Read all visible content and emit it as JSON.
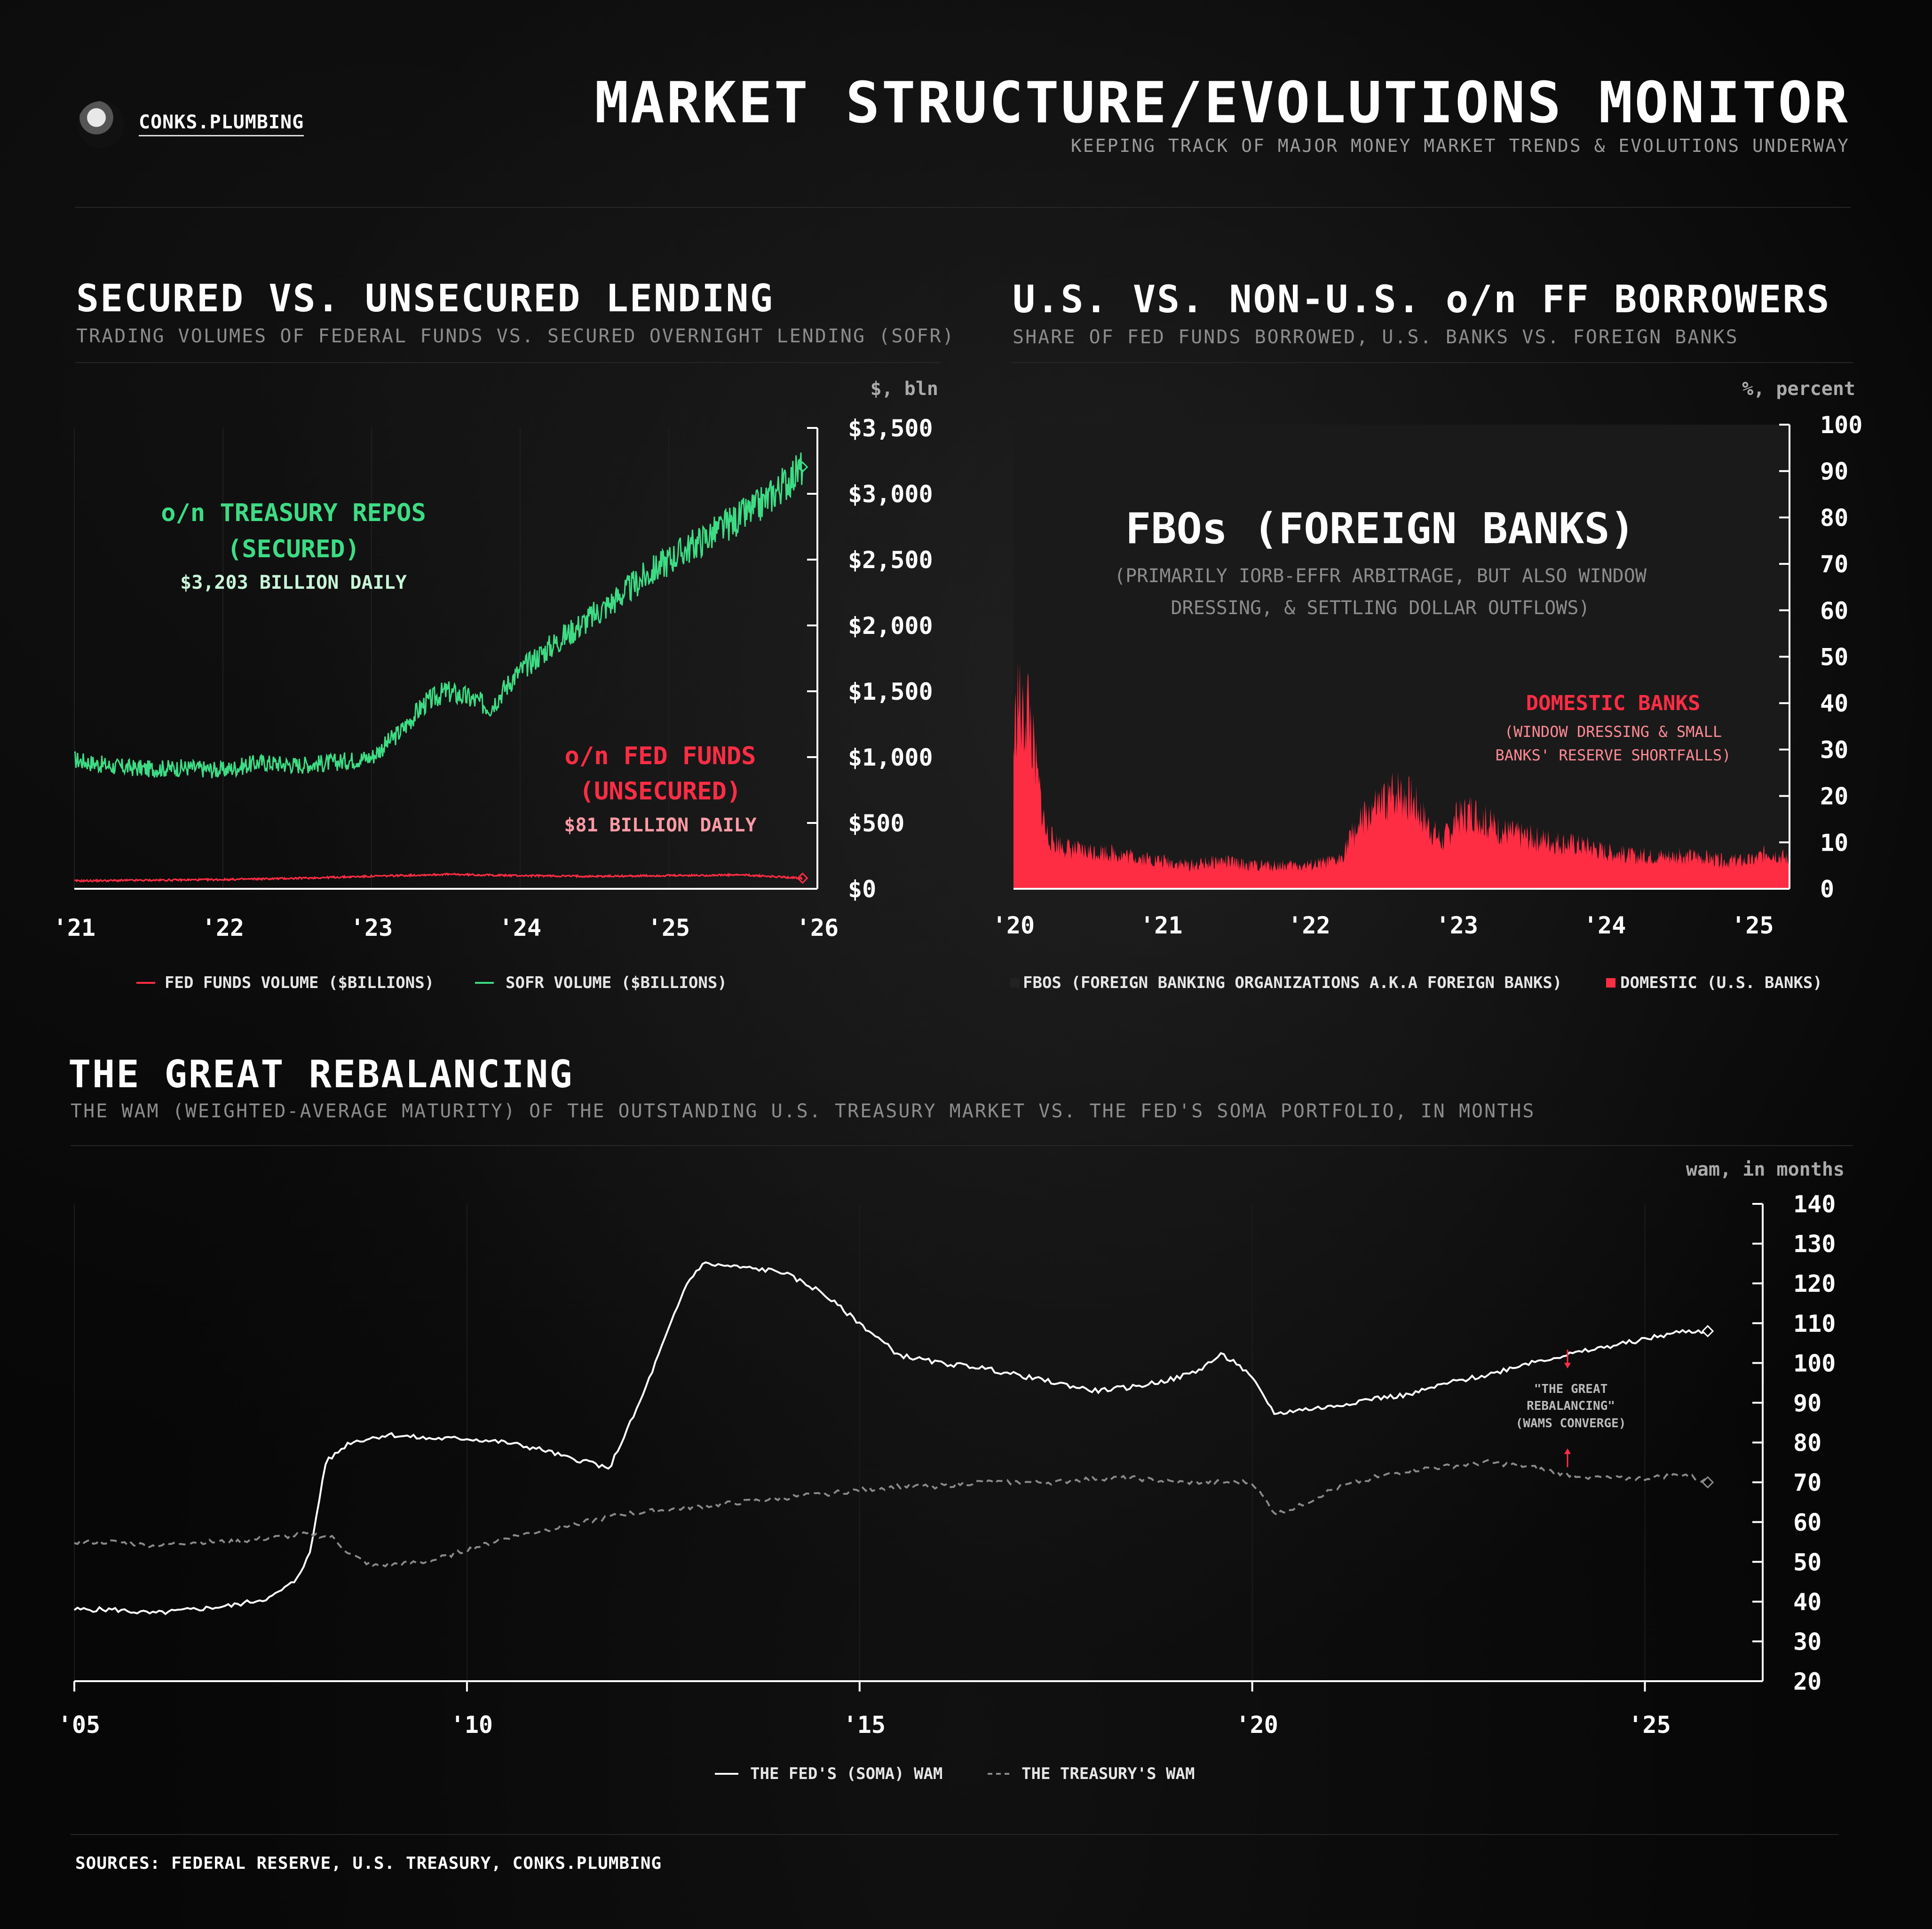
{
  "header": {
    "brand": "CONKS.PLUMBING",
    "title": "MARKET STRUCTURE/EVOLUTIONS MONITOR",
    "subtitle": "KEEPING TRACK OF MAJOR MONEY MARKET TRENDS & EVOLUTIONS UNDERWAY"
  },
  "colors": {
    "sofr": "#3ddc84",
    "fedfunds": "#ff2d44",
    "domestic": "#ff2d44",
    "fbo_bg": "#1a1a1a",
    "soma": "#ffffff",
    "treasury": "#8a8a8a"
  },
  "panel1": {
    "title": "SECURED VS. UNSECURED LENDING",
    "subtitle": "TRADING VOLUMES OF FEDERAL FUNDS VS. SECURED OVERNIGHT LENDING (SOFR)",
    "unit": "$, bln",
    "anno_sofr_1": "o/n TREASURY REPOS",
    "anno_sofr_2": "(SECURED)",
    "anno_sofr_3": "$3,203 BILLION DAILY",
    "anno_ff_1": "o/n FED FUNDS",
    "anno_ff_2": "(UNSECURED)",
    "anno_ff_3": "$81 BILLION DAILY",
    "legend_ff": "FED FUNDS VOLUME ($BILLIONS)",
    "legend_sofr": "SOFR VOLUME ($BILLIONS)"
  },
  "panel2": {
    "title": "U.S. VS. NON-U.S. o/n FF BORROWERS",
    "subtitle": "SHARE OF FED FUNDS BORROWED, U.S. BANKS VS. FOREIGN BANKS",
    "unit": "%, percent",
    "anno_fbo_1": "FBOs (FOREIGN BANKS)",
    "anno_fbo_2": "(PRIMARILY IORB-EFFR ARBITRAGE, BUT ALSO WINDOW",
    "anno_fbo_3": "DRESSING, & SETTLING DOLLAR OUTFLOWS)",
    "anno_dom_1": "DOMESTIC BANKS",
    "anno_dom_2": "(WINDOW DRESSING & SMALL",
    "anno_dom_3": "BANKS' RESERVE SHORTFALLS)",
    "legend_fbo": "FBOS (FOREIGN BANKING ORGANIZATIONS A.K.A FOREIGN BANKS)",
    "legend_dom": "DOMESTIC (U.S. BANKS)"
  },
  "panel3": {
    "title": "THE GREAT REBALANCING",
    "subtitle": "THE WAM (WEIGHTED-AVERAGE MATURITY) OF THE OUTSTANDING U.S. TREASURY MARKET VS. THE FED'S SOMA PORTFOLIO, IN MONTHS",
    "unit": "wam, in months",
    "anno_1": "\"THE GREAT",
    "anno_2": "REBALANCING\"",
    "anno_3": "(WAMS CONVERGE)",
    "legend_soma": "THE FED'S (SOMA) WAM",
    "legend_tsy": "THE TREASURY'S WAM"
  },
  "sources": "SOURCES: FEDERAL RESERVE, U.S. TREASURY, CONKS.PLUMBING",
  "chart_data": [
    {
      "type": "line",
      "title": "SECURED VS. UNSECURED LENDING",
      "ylabel": "$, bln",
      "xlim": [
        2021.0,
        2026.0
      ],
      "ylim": [
        0,
        3500
      ],
      "x_ticks": [
        "'21",
        "'22",
        "'23",
        "'24",
        "'25",
        "'26"
      ],
      "y_ticks": [
        "$0",
        "$500",
        "$1,000",
        "$1,500",
        "$2,000",
        "$2,500",
        "$3,000",
        "$3,500"
      ],
      "grid": true,
      "series": [
        {
          "name": "SOFR VOLUME ($BILLIONS)",
          "x": [
            2021.0,
            2021.25,
            2021.5,
            2021.75,
            2022.0,
            2022.25,
            2022.5,
            2022.75,
            2023.0,
            2023.2,
            2023.35,
            2023.5,
            2023.65,
            2023.8,
            2023.95,
            2024.1,
            2024.25,
            2024.4,
            2024.55,
            2024.7,
            2024.85,
            2025.0,
            2025.15,
            2025.3,
            2025.45,
            2025.6,
            2025.75,
            2025.9
          ],
          "values": [
            980,
            930,
            910,
            920,
            900,
            960,
            940,
            960,
            1000,
            1200,
            1400,
            1500,
            1450,
            1380,
            1600,
            1750,
            1880,
            2000,
            2120,
            2250,
            2380,
            2500,
            2600,
            2700,
            2800,
            2900,
            3050,
            3203
          ]
        },
        {
          "name": "FED FUNDS VOLUME ($BILLIONS)",
          "x": [
            2021.0,
            2021.5,
            2022.0,
            2022.5,
            2023.0,
            2023.5,
            2024.0,
            2024.5,
            2025.0,
            2025.5,
            2025.9
          ],
          "values": [
            60,
            65,
            70,
            80,
            95,
            110,
            100,
            95,
            100,
            105,
            81
          ]
        }
      ]
    },
    {
      "type": "area",
      "title": "U.S. VS. NON-U.S. o/n FF BORROWERS",
      "ylabel": "%, percent",
      "xlim": [
        2020.0,
        2025.25
      ],
      "ylim": [
        0,
        100
      ],
      "x_ticks": [
        "'20",
        "'21",
        "'22",
        "'23",
        "'24",
        "'25"
      ],
      "y_ticks": [
        "0",
        "10",
        "20",
        "30",
        "40",
        "50",
        "60",
        "70",
        "80",
        "90",
        "100"
      ],
      "grid": false,
      "series": [
        {
          "name": "DOMESTIC (U.S. BANKS)",
          "x": [
            2020.0,
            2020.03,
            2020.06,
            2020.1,
            2020.14,
            2020.18,
            2020.22,
            2020.28,
            2020.35,
            2020.45,
            2020.6,
            2020.8,
            2021.0,
            2021.2,
            2021.4,
            2021.6,
            2021.8,
            2022.0,
            2022.2,
            2022.3,
            2022.4,
            2022.5,
            2022.6,
            2022.7,
            2022.8,
            2022.9,
            2023.0,
            2023.1,
            2023.2,
            2023.35,
            2023.5,
            2023.7,
            2023.9,
            2024.0,
            2024.2,
            2024.4,
            2024.6,
            2024.8,
            2025.0,
            2025.1,
            2025.2,
            2025.25
          ],
          "values": [
            30,
            42,
            35,
            40,
            28,
            20,
            12,
            10,
            9,
            8,
            8,
            7,
            6,
            5,
            6,
            5,
            5,
            5,
            6,
            12,
            16,
            18,
            21,
            19,
            14,
            10,
            15,
            17,
            14,
            12,
            11,
            10,
            9,
            8,
            7,
            7,
            7,
            6,
            6,
            8,
            7,
            6
          ]
        },
        {
          "name": "FBOS (FOREIGN BANKING ORGANIZATIONS A.K.A FOREIGN BANKS)",
          "note_values": "100 minus DOMESTIC"
        }
      ]
    },
    {
      "type": "line",
      "title": "THE GREAT REBALANCING",
      "ylabel": "wam, in months",
      "xlim": [
        2005.0,
        2026.5
      ],
      "ylim": [
        20,
        140
      ],
      "x_ticks": [
        "'05",
        "'10",
        "'15",
        "'20",
        "'25"
      ],
      "y_ticks": [
        "20",
        "30",
        "40",
        "50",
        "60",
        "70",
        "80",
        "90",
        "100",
        "110",
        "120",
        "130",
        "140"
      ],
      "grid": true,
      "series": [
        {
          "name": "THE FED'S (SOMA) WAM",
          "x": [
            2005.0,
            2005.5,
            2006.0,
            2006.5,
            2007.0,
            2007.5,
            2007.8,
            2008.0,
            2008.2,
            2008.5,
            2009.0,
            2009.5,
            2010.0,
            2010.5,
            2011.0,
            2011.3,
            2011.6,
            2011.8,
            2012.2,
            2012.6,
            2012.8,
            2013.0,
            2013.5,
            2014.0,
            2014.5,
            2015.0,
            2015.5,
            2016.0,
            2016.5,
            2017.0,
            2017.5,
            2018.0,
            2018.5,
            2019.0,
            2019.3,
            2019.6,
            2019.8,
            2020.0,
            2020.3,
            2020.5,
            2021.0,
            2021.5,
            2022.0,
            2022.5,
            2023.0,
            2023.5,
            2024.0,
            2024.5,
            2025.0,
            2025.5,
            2025.8
          ],
          "values": [
            38,
            38,
            37,
            38,
            39,
            41,
            45,
            52,
            75,
            80,
            82,
            81,
            81,
            80,
            78,
            76,
            75,
            73,
            90,
            110,
            120,
            125,
            124,
            123,
            118,
            110,
            102,
            100,
            99,
            97,
            95,
            93,
            94,
            96,
            98,
            102,
            100,
            96,
            87,
            88,
            89,
            91,
            92,
            95,
            97,
            100,
            102,
            104,
            106,
            108,
            108
          ]
        },
        {
          "name": "THE TREASURY'S WAM",
          "x": [
            2005.0,
            2005.5,
            2006.0,
            2006.5,
            2007.0,
            2007.5,
            2008.0,
            2008.3,
            2008.5,
            2008.8,
            2009.5,
            2010.0,
            2010.5,
            2011.0,
            2011.5,
            2012.0,
            2012.5,
            2013.0,
            2013.5,
            2014.0,
            2014.5,
            2015.0,
            2015.5,
            2016.0,
            2016.5,
            2017.0,
            2017.5,
            2018.0,
            2018.5,
            2019.0,
            2019.5,
            2020.0,
            2020.3,
            2020.6,
            2021.0,
            2021.5,
            2022.0,
            2022.5,
            2023.0,
            2023.5,
            2024.0,
            2024.5,
            2025.0,
            2025.5,
            2025.8
          ],
          "values": [
            55,
            55,
            54,
            55,
            55,
            56,
            57,
            56,
            52,
            49,
            50,
            53,
            56,
            58,
            60,
            62,
            63,
            64,
            65,
            66,
            67,
            68,
            69,
            69,
            70,
            70,
            70,
            71,
            71,
            70,
            70,
            70,
            62,
            64,
            68,
            71,
            73,
            74,
            75,
            74,
            72,
            71,
            71,
            72,
            70
          ]
        }
      ]
    }
  ]
}
